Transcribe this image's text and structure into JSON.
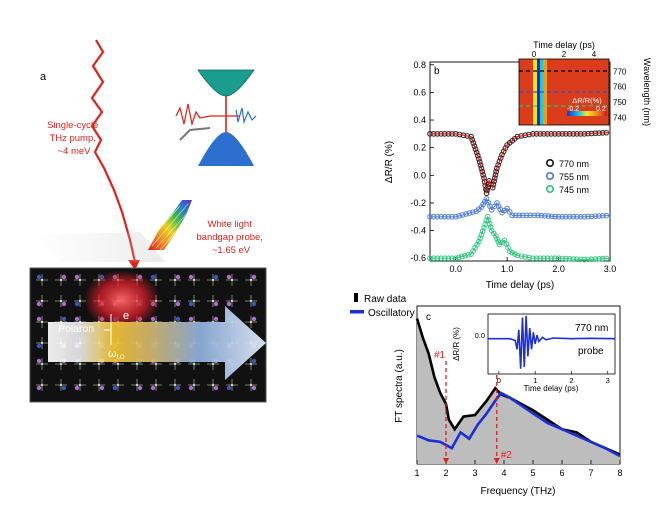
{
  "panel_a": {
    "label": "a",
    "pump_label": [
      "Single-cycle",
      "THz pump,",
      "~4 meV"
    ],
    "probe_label": [
      "White light",
      "bandgap probe,",
      "~1.65 eV"
    ],
    "polaron_label": "Polaron",
    "electron_label": "e",
    "phonon_label": "ω",
    "phonon_sub": "LO",
    "colors": {
      "pump": "#e0201b",
      "polaron_glow": "#e8202a",
      "lattice_bg": "#111111"
    }
  },
  "chart_data": [
    {
      "id": "b",
      "type": "line",
      "panel_label": "b",
      "xlabel": "Time delay (ps)",
      "ylabel": "ΔR/R (%)",
      "xlim": [
        -0.5,
        3.0
      ],
      "ylim": [
        -0.62,
        0.82
      ],
      "xticks": [
        0.0,
        1.0,
        2.0,
        3.0
      ],
      "xtick_labels": [
        "0.0",
        "1.0",
        "2.0",
        "3.0"
      ],
      "yticks": [
        0.8,
        0.6,
        0.4,
        0.2,
        0.0,
        -0.2,
        -0.4,
        -0.6
      ],
      "ytick_labels": [
        "0.8",
        "0.6",
        "0.4",
        "0.2",
        "0.0",
        "-0.2",
        "-0.4",
        "-0.6"
      ],
      "series": [
        {
          "name": "770 nm",
          "color": "#111111",
          "fit_color": "#e0201b",
          "x": [
            -0.5,
            0.0,
            0.3,
            0.45,
            0.55,
            0.6,
            0.65,
            0.72,
            0.8,
            0.9,
            1.0,
            1.2,
            1.5,
            2.0,
            2.5,
            3.0
          ],
          "y": [
            0.3,
            0.3,
            0.28,
            0.12,
            -0.02,
            -0.13,
            -0.04,
            -0.09,
            0.05,
            0.15,
            0.22,
            0.28,
            0.3,
            0.3,
            0.3,
            0.31
          ]
        },
        {
          "name": "755 nm",
          "color": "#4a78d8",
          "x": [
            -0.5,
            0.0,
            0.4,
            0.5,
            0.6,
            0.7,
            0.8,
            0.9,
            1.0,
            1.1,
            1.3,
            1.6,
            2.0,
            2.5,
            3.0
          ],
          "y": [
            -0.3,
            -0.3,
            -0.26,
            -0.23,
            -0.17,
            -0.25,
            -0.2,
            -0.27,
            -0.24,
            -0.29,
            -0.29,
            -0.29,
            -0.3,
            -0.3,
            -0.29
          ]
        },
        {
          "name": "745 nm",
          "color": "#2ec47c",
          "x": [
            -0.5,
            0.0,
            0.3,
            0.45,
            0.55,
            0.62,
            0.7,
            0.78,
            0.85,
            0.95,
            1.05,
            1.2,
            1.5,
            2.0,
            2.5,
            3.0
          ],
          "y": [
            -0.6,
            -0.6,
            -0.57,
            -0.48,
            -0.38,
            -0.3,
            -0.4,
            -0.44,
            -0.5,
            -0.47,
            -0.55,
            -0.58,
            -0.6,
            -0.6,
            -0.61,
            -0.6
          ]
        }
      ],
      "inset": {
        "type": "heatmap",
        "xlabel": "Time delay (ps)",
        "ylabel": "Wavelength (nm)",
        "xlim": [
          -1,
          5
        ],
        "ylim": [
          735,
          778
        ],
        "xticks": [
          0,
          2,
          4
        ],
        "yticks": [
          770,
          760,
          750,
          740
        ],
        "colorbar_label": "ΔR/R(%)",
        "colorbar_range": [
          -0.2,
          0.2
        ],
        "colorbar_tick_labels": [
          "-0.2",
          "0.2"
        ],
        "marked_wavelengths": [
          770,
          755,
          745
        ]
      }
    },
    {
      "id": "c",
      "type": "area",
      "panel_label": "c",
      "xlabel": "Frequency (THz)",
      "ylabel": "FT spectra (a.u.)",
      "xlim": [
        1,
        8
      ],
      "xticks": [
        1,
        2,
        3,
        4,
        5,
        6,
        7,
        8
      ],
      "xtick_labels": [
        "1",
        "2",
        "3",
        "4",
        "5",
        "6",
        "7",
        "8"
      ],
      "legend": [
        "Raw data",
        "Oscillatory"
      ],
      "series": [
        {
          "name": "Raw data",
          "color": "#000000",
          "fill": "#bdbdbd",
          "x": [
            1.0,
            1.2,
            1.4,
            1.6,
            1.8,
            2.0,
            2.1,
            2.3,
            2.6,
            3.0,
            3.4,
            3.7,
            3.9,
            4.2,
            4.6,
            5.0,
            5.5,
            6.0,
            6.5,
            7.0,
            7.5,
            8.0
          ],
          "y": [
            0.92,
            0.8,
            0.7,
            0.55,
            0.45,
            0.38,
            0.28,
            0.22,
            0.3,
            0.31,
            0.4,
            0.48,
            0.44,
            0.42,
            0.38,
            0.34,
            0.28,
            0.22,
            0.2,
            0.14,
            0.1,
            0.06
          ]
        },
        {
          "name": "Oscillatory",
          "color": "#1c2fd6",
          "x": [
            1.0,
            1.4,
            1.8,
            2.0,
            2.2,
            2.5,
            2.8,
            3.1,
            3.4,
            3.7,
            3.9,
            4.2,
            4.6,
            5.0,
            5.5,
            6.0,
            6.5,
            7.0,
            7.5,
            8.0
          ],
          "y": [
            0.18,
            0.15,
            0.14,
            0.12,
            0.1,
            0.2,
            0.16,
            0.25,
            0.32,
            0.4,
            0.45,
            0.42,
            0.37,
            0.32,
            0.26,
            0.22,
            0.18,
            0.14,
            0.1,
            0.05
          ]
        }
      ],
      "annotations": [
        {
          "text": "#1",
          "x": 2.0,
          "color": "#e0201b"
        },
        {
          "text": "#2",
          "x": 3.75,
          "color": "#e0201b"
        }
      ],
      "inset": {
        "type": "line",
        "xlabel": "Time delay (ps)",
        "ylabel": "ΔR/R (%)",
        "xlim": [
          -0.3,
          3.2
        ],
        "ylim": [
          -0.1,
          0.07
        ],
        "xticks": [
          0,
          1,
          2,
          3
        ],
        "yticks": [
          0.0
        ],
        "ytick_labels": [
          "0.0"
        ],
        "text_labels": [
          "770 nm",
          "probe"
        ],
        "series": [
          {
            "name": "oscillatory 770 nm",
            "color": "#1c2fd6",
            "x": [
              -0.3,
              0.3,
              0.45,
              0.5,
              0.55,
              0.6,
              0.65,
              0.7,
              0.75,
              0.8,
              0.85,
              0.9,
              0.95,
              1.0,
              1.05,
              1.1,
              1.2,
              1.3,
              1.5,
              2.0,
              2.5,
              3.2
            ],
            "y": [
              0.0,
              0.0,
              -0.005,
              -0.03,
              0.025,
              -0.085,
              0.06,
              -0.08,
              0.065,
              -0.05,
              0.03,
              -0.03,
              0.018,
              -0.015,
              0.01,
              -0.008,
              0.004,
              -0.003,
              0.002,
              0.0,
              0.001,
              0.0
            ]
          }
        ]
      }
    }
  ]
}
